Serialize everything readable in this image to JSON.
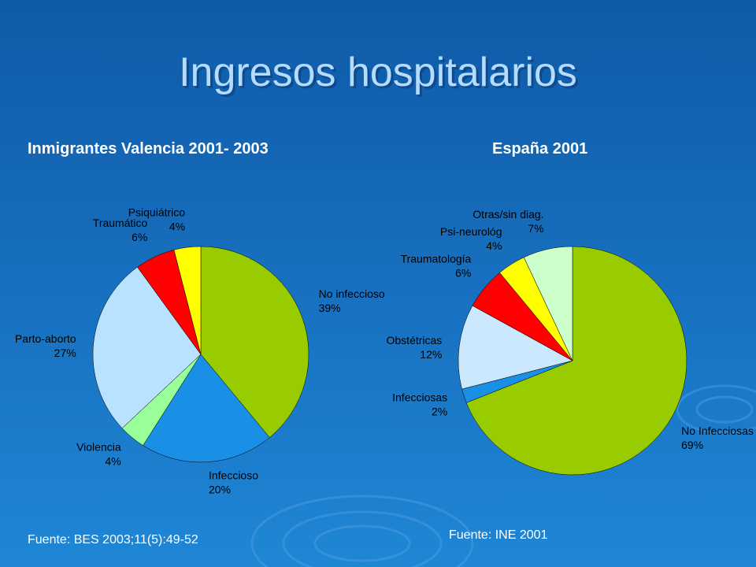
{
  "title": "Ingresos hospitalarios",
  "chart_data": [
    {
      "type": "pie",
      "title": "Inmigrantes Valencia 2001- 2003",
      "source": "Fuente: BES 2003;11(5):49-52",
      "categories": [
        "No infeccioso",
        "Infeccioso",
        "Violencia",
        "Parto-aborto",
        "Traumático",
        "Psiquiátrico"
      ],
      "values": [
        39,
        20,
        4,
        27,
        6,
        4
      ],
      "value_labels": [
        "39%",
        "20%",
        "4%",
        "27%",
        "6%",
        "4%"
      ],
      "colors": [
        "#99cc00",
        "#1a8fe6",
        "#99ff99",
        "#b8e2ff",
        "#ff0000",
        "#ffff00"
      ]
    },
    {
      "type": "pie",
      "title": "España 2001",
      "source": "Fuente: INE 2001",
      "categories": [
        "No Infecciosas",
        "Infecciosas",
        "Obstétricas",
        "Traumatología",
        "Psi-neurológ",
        "Otras/sin diag."
      ],
      "values": [
        69,
        2,
        12,
        6,
        4,
        7
      ],
      "value_labels": [
        "69%",
        "2%",
        "12%",
        "6%",
        "4%",
        "7%"
      ],
      "colors": [
        "#99cc00",
        "#1a8fe6",
        "#cce8ff",
        "#ff0000",
        "#ffff00",
        "#ccffcc"
      ]
    }
  ]
}
